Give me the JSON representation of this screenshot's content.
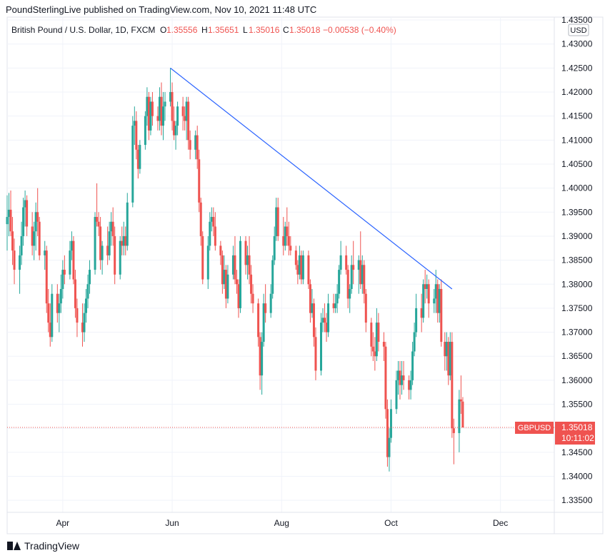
{
  "header": {
    "published_line": "PoundSterlingLive published on TradingView.com, Nov 10, 2021 11:48 UTC"
  },
  "symbol_bar": {
    "title": "British Pound / U.S. Dollar, 1D, FXCM",
    "o_label": "O",
    "o_value": "1.35556",
    "h_label": "H",
    "h_value": "1.35651",
    "l_label": "L",
    "l_value": "1.35016",
    "c_label": "C",
    "c_value": "1.35018",
    "change": "−0.00538 (−0.40%)"
  },
  "currency_badge": "USD",
  "price_tag": {
    "symbol": "GBPUSD",
    "price": "1.35018",
    "countdown": "10:11:02"
  },
  "footer": {
    "brand": "TradingView"
  },
  "colors": {
    "up": "#26a69a",
    "down": "#ef5350",
    "trendline": "#2962ff",
    "grid": "#f0f3fa",
    "text": "#131722"
  },
  "chart_data": {
    "type": "candlestick",
    "title": "",
    "xlabel": "",
    "ylabel": "",
    "ylim": [
      1.3325,
      1.4356
    ],
    "yticks": [
      "1.43500",
      "1.43000",
      "1.42500",
      "1.42000",
      "1.41500",
      "1.41000",
      "1.40500",
      "1.40000",
      "1.39500",
      "1.39000",
      "1.38500",
      "1.38000",
      "1.37500",
      "1.37000",
      "1.36500",
      "1.36000",
      "1.35500",
      "1.35000",
      "1.34500",
      "1.34000",
      "1.33500"
    ],
    "xticks": [
      "Apr",
      "Jun",
      "Aug",
      "Oct",
      "Dec"
    ],
    "xtick_dates": [
      "2021-04-01",
      "2021-06-01",
      "2021-08-01",
      "2021-10-01",
      "2021-12-01"
    ],
    "xrange": [
      "2021-03-01",
      "2021-12-31"
    ],
    "last_price": 1.35018,
    "trendline": {
      "from": [
        "2021-05-31",
        1.425
      ],
      "to": [
        "2021-11-04",
        1.379
      ]
    },
    "candles": [
      [
        "2021-03-01",
        1.3925,
        1.3985,
        1.387,
        1.394
      ],
      [
        "2021-03-02",
        1.394,
        1.399,
        1.39,
        1.3955
      ],
      [
        "2021-03-03",
        1.3955,
        1.3995,
        1.39,
        1.391
      ],
      [
        "2021-03-04",
        1.391,
        1.394,
        1.384,
        1.387
      ],
      [
        "2021-03-05",
        1.387,
        1.3895,
        1.38,
        1.383
      ],
      [
        "2021-03-08",
        1.383,
        1.388,
        1.378,
        1.386
      ],
      [
        "2021-03-09",
        1.386,
        1.393,
        1.384,
        1.39
      ],
      [
        "2021-03-10",
        1.39,
        1.398,
        1.388,
        1.396
      ],
      [
        "2021-03-11",
        1.396,
        1.3995,
        1.392,
        1.3975
      ],
      [
        "2021-03-12",
        1.3975,
        1.3985,
        1.39,
        1.392
      ],
      [
        "2021-03-15",
        1.392,
        1.395,
        1.386,
        1.388
      ],
      [
        "2021-03-16",
        1.388,
        1.393,
        1.385,
        1.391
      ],
      [
        "2021-03-17",
        1.391,
        1.397,
        1.387,
        1.395
      ],
      [
        "2021-03-18",
        1.395,
        1.4,
        1.39,
        1.393
      ],
      [
        "2021-03-19",
        1.393,
        1.394,
        1.385,
        1.386
      ],
      [
        "2021-03-22",
        1.386,
        1.389,
        1.383,
        1.387
      ],
      [
        "2021-03-23",
        1.387,
        1.388,
        1.374,
        1.376
      ],
      [
        "2021-03-24",
        1.376,
        1.379,
        1.37,
        1.372
      ],
      [
        "2021-03-25",
        1.372,
        1.376,
        1.367,
        1.369
      ],
      [
        "2021-03-26",
        1.369,
        1.38,
        1.368,
        1.378
      ],
      [
        "2021-03-29",
        1.378,
        1.38,
        1.372,
        1.374
      ],
      [
        "2021-03-30",
        1.374,
        1.378,
        1.37,
        1.376
      ],
      [
        "2021-03-31",
        1.376,
        1.382,
        1.374,
        1.379
      ],
      [
        "2021-04-01",
        1.379,
        1.385,
        1.377,
        1.383
      ],
      [
        "2021-04-02",
        1.383,
        1.386,
        1.38,
        1.382
      ],
      [
        "2021-04-05",
        1.382,
        1.389,
        1.381,
        1.387
      ],
      [
        "2021-04-06",
        1.387,
        1.391,
        1.385,
        1.389
      ],
      [
        "2021-04-07",
        1.389,
        1.39,
        1.38,
        1.381
      ],
      [
        "2021-04-08",
        1.381,
        1.383,
        1.373,
        1.375
      ],
      [
        "2021-04-09",
        1.375,
        1.377,
        1.369,
        1.372
      ],
      [
        "2021-04-12",
        1.372,
        1.376,
        1.367,
        1.37
      ],
      [
        "2021-04-13",
        1.37,
        1.376,
        1.368,
        1.374
      ],
      [
        "2021-04-14",
        1.374,
        1.379,
        1.372,
        1.377
      ],
      [
        "2021-04-15",
        1.377,
        1.382,
        1.375,
        1.38
      ],
      [
        "2021-04-16",
        1.38,
        1.385,
        1.378,
        1.383
      ],
      [
        "2021-04-19",
        1.383,
        1.395,
        1.382,
        1.394
      ],
      [
        "2021-04-20",
        1.394,
        1.401,
        1.392,
        1.393
      ],
      [
        "2021-04-21",
        1.393,
        1.395,
        1.39,
        1.392
      ],
      [
        "2021-04-22",
        1.392,
        1.394,
        1.383,
        1.385
      ],
      [
        "2021-04-23",
        1.385,
        1.389,
        1.382,
        1.388
      ],
      [
        "2021-04-26",
        1.388,
        1.392,
        1.384,
        1.386
      ],
      [
        "2021-04-27",
        1.386,
        1.393,
        1.385,
        1.391
      ],
      [
        "2021-04-28",
        1.391,
        1.395,
        1.388,
        1.393
      ],
      [
        "2021-04-29",
        1.393,
        1.396,
        1.388,
        1.39
      ],
      [
        "2021-04-30",
        1.39,
        1.392,
        1.38,
        1.382
      ],
      [
        "2021-05-03",
        1.382,
        1.39,
        1.381,
        1.389
      ],
      [
        "2021-05-04",
        1.389,
        1.392,
        1.386,
        1.388
      ],
      [
        "2021-05-05",
        1.388,
        1.393,
        1.386,
        1.39
      ],
      [
        "2021-05-06",
        1.39,
        1.392,
        1.386,
        1.388
      ],
      [
        "2021-05-07",
        1.388,
        1.399,
        1.387,
        1.397
      ],
      [
        "2021-05-10",
        1.397,
        1.415,
        1.396,
        1.413
      ],
      [
        "2021-05-11",
        1.413,
        1.417,
        1.409,
        1.414
      ],
      [
        "2021-05-12",
        1.414,
        1.416,
        1.406,
        1.408
      ],
      [
        "2021-05-13",
        1.408,
        1.409,
        1.402,
        1.404
      ],
      [
        "2021-05-14",
        1.404,
        1.41,
        1.403,
        1.409
      ],
      [
        "2021-05-17",
        1.409,
        1.416,
        1.408,
        1.415
      ],
      [
        "2021-05-18",
        1.415,
        1.421,
        1.413,
        1.419
      ],
      [
        "2021-05-19",
        1.419,
        1.42,
        1.41,
        1.412
      ],
      [
        "2021-05-20",
        1.412,
        1.419,
        1.411,
        1.418
      ],
      [
        "2021-05-21",
        1.418,
        1.42,
        1.413,
        1.415
      ],
      [
        "2021-05-24",
        1.415,
        1.417,
        1.412,
        1.414
      ],
      [
        "2021-05-25",
        1.414,
        1.421,
        1.412,
        1.419
      ],
      [
        "2021-05-26",
        1.419,
        1.422,
        1.411,
        1.413
      ],
      [
        "2021-05-27",
        1.413,
        1.42,
        1.41,
        1.417
      ],
      [
        "2021-05-28",
        1.417,
        1.42,
        1.414,
        1.418
      ],
      [
        "2021-05-31",
        1.418,
        1.425,
        1.417,
        1.42
      ],
      [
        "2021-06-01",
        1.42,
        1.422,
        1.412,
        1.414
      ],
      [
        "2021-06-02",
        1.414,
        1.417,
        1.41,
        1.411
      ],
      [
        "2021-06-03",
        1.411,
        1.414,
        1.408,
        1.413
      ],
      [
        "2021-06-04",
        1.413,
        1.418,
        1.411,
        1.417
      ],
      [
        "2021-06-07",
        1.417,
        1.419,
        1.412,
        1.415
      ],
      [
        "2021-06-08",
        1.415,
        1.417,
        1.412,
        1.414
      ],
      [
        "2021-06-09",
        1.414,
        1.419,
        1.41,
        1.418
      ],
      [
        "2021-06-10",
        1.418,
        1.419,
        1.408,
        1.41
      ],
      [
        "2021-06-11",
        1.41,
        1.412,
        1.406,
        1.408
      ],
      [
        "2021-06-14",
        1.408,
        1.412,
        1.406,
        1.411
      ],
      [
        "2021-06-15",
        1.411,
        1.413,
        1.404,
        1.406
      ],
      [
        "2021-06-16",
        1.406,
        1.408,
        1.395,
        1.397
      ],
      [
        "2021-06-17",
        1.397,
        1.398,
        1.388,
        1.39
      ],
      [
        "2021-06-18",
        1.39,
        1.391,
        1.38,
        1.381
      ],
      [
        "2021-06-21",
        1.381,
        1.39,
        1.379,
        1.388
      ],
      [
        "2021-06-22",
        1.388,
        1.395,
        1.387,
        1.393
      ],
      [
        "2021-06-23",
        1.393,
        1.396,
        1.391,
        1.394
      ],
      [
        "2021-06-24",
        1.394,
        1.396,
        1.39,
        1.392
      ],
      [
        "2021-06-25",
        1.392,
        1.395,
        1.387,
        1.388
      ],
      [
        "2021-06-28",
        1.388,
        1.389,
        1.384,
        1.386
      ],
      [
        "2021-06-29",
        1.386,
        1.387,
        1.378,
        1.38
      ],
      [
        "2021-06-30",
        1.38,
        1.386,
        1.379,
        1.383
      ],
      [
        "2021-07-01",
        1.383,
        1.384,
        1.375,
        1.377
      ],
      [
        "2021-07-02",
        1.377,
        1.384,
        1.376,
        1.382
      ],
      [
        "2021-07-05",
        1.382,
        1.388,
        1.381,
        1.386
      ],
      [
        "2021-07-06",
        1.386,
        1.39,
        1.38,
        1.381
      ],
      [
        "2021-07-07",
        1.381,
        1.383,
        1.378,
        1.38
      ],
      [
        "2021-07-08",
        1.38,
        1.381,
        1.373,
        1.375
      ],
      [
        "2021-07-09",
        1.375,
        1.39,
        1.374,
        1.389
      ],
      [
        "2021-07-12",
        1.389,
        1.39,
        1.382,
        1.384
      ],
      [
        "2021-07-13",
        1.384,
        1.388,
        1.381,
        1.386
      ],
      [
        "2021-07-14",
        1.386,
        1.39,
        1.38,
        1.382
      ],
      [
        "2021-07-15",
        1.382,
        1.384,
        1.376,
        1.378
      ],
      [
        "2021-07-16",
        1.378,
        1.38,
        1.374,
        1.376
      ],
      [
        "2021-07-19",
        1.376,
        1.377,
        1.367,
        1.369
      ],
      [
        "2021-07-20",
        1.369,
        1.37,
        1.358,
        1.361
      ],
      [
        "2021-07-21",
        1.361,
        1.37,
        1.357,
        1.368
      ],
      [
        "2021-07-22",
        1.368,
        1.378,
        1.367,
        1.376
      ],
      [
        "2021-07-23",
        1.376,
        1.38,
        1.372,
        1.374
      ],
      [
        "2021-07-26",
        1.374,
        1.38,
        1.373,
        1.378
      ],
      [
        "2021-07-27",
        1.378,
        1.386,
        1.377,
        1.385
      ],
      [
        "2021-07-28",
        1.385,
        1.392,
        1.384,
        1.39
      ],
      [
        "2021-07-29",
        1.39,
        1.398,
        1.389,
        1.396
      ],
      [
        "2021-07-30",
        1.396,
        1.398,
        1.389,
        1.39
      ],
      [
        "2021-08-02",
        1.39,
        1.394,
        1.386,
        1.388
      ],
      [
        "2021-08-03",
        1.388,
        1.393,
        1.387,
        1.392
      ],
      [
        "2021-08-04",
        1.392,
        1.396,
        1.388,
        1.39
      ],
      [
        "2021-08-05",
        1.39,
        1.393,
        1.386,
        1.388
      ],
      [
        "2021-08-06",
        1.388,
        1.39,
        1.386,
        1.387
      ],
      [
        "2021-08-09",
        1.387,
        1.388,
        1.383,
        1.384
      ],
      [
        "2021-08-10",
        1.384,
        1.385,
        1.38,
        1.382
      ],
      [
        "2021-08-11",
        1.382,
        1.388,
        1.381,
        1.386
      ],
      [
        "2021-08-12",
        1.386,
        1.387,
        1.38,
        1.381
      ],
      [
        "2021-08-13",
        1.381,
        1.387,
        1.38,
        1.386
      ],
      [
        "2021-08-16",
        1.386,
        1.387,
        1.379,
        1.38
      ],
      [
        "2021-08-17",
        1.38,
        1.381,
        1.372,
        1.374
      ],
      [
        "2021-08-18",
        1.374,
        1.379,
        1.373,
        1.376
      ],
      [
        "2021-08-19",
        1.376,
        1.377,
        1.367,
        1.369
      ],
      [
        "2021-08-20",
        1.369,
        1.371,
        1.36,
        1.362
      ],
      [
        "2021-08-23",
        1.362,
        1.374,
        1.361,
        1.372
      ],
      [
        "2021-08-24",
        1.372,
        1.375,
        1.37,
        1.373
      ],
      [
        "2021-08-25",
        1.373,
        1.376,
        1.37,
        1.372
      ],
      [
        "2021-08-26",
        1.372,
        1.374,
        1.368,
        1.37
      ],
      [
        "2021-08-27",
        1.37,
        1.378,
        1.369,
        1.376
      ],
      [
        "2021-08-30",
        1.376,
        1.378,
        1.374,
        1.375
      ],
      [
        "2021-08-31",
        1.375,
        1.378,
        1.374,
        1.376
      ],
      [
        "2021-09-01",
        1.376,
        1.38,
        1.374,
        1.378
      ],
      [
        "2021-09-02",
        1.378,
        1.384,
        1.377,
        1.383
      ],
      [
        "2021-09-03",
        1.383,
        1.389,
        1.382,
        1.386
      ],
      [
        "2021-09-06",
        1.386,
        1.388,
        1.382,
        1.383
      ],
      [
        "2021-09-07",
        1.383,
        1.384,
        1.375,
        1.377
      ],
      [
        "2021-09-08",
        1.377,
        1.38,
        1.374,
        1.379
      ],
      [
        "2021-09-09",
        1.379,
        1.386,
        1.378,
        1.384
      ],
      [
        "2021-09-10",
        1.384,
        1.389,
        1.38,
        1.383
      ],
      [
        "2021-09-13",
        1.383,
        1.386,
        1.378,
        1.385
      ],
      [
        "2021-09-14",
        1.385,
        1.391,
        1.379,
        1.38
      ],
      [
        "2021-09-15",
        1.38,
        1.386,
        1.378,
        1.384
      ],
      [
        "2021-09-16",
        1.384,
        1.385,
        1.376,
        1.378
      ],
      [
        "2021-09-17",
        1.378,
        1.379,
        1.37,
        1.372
      ],
      [
        "2021-09-20",
        1.372,
        1.373,
        1.365,
        1.367
      ],
      [
        "2021-09-21",
        1.367,
        1.37,
        1.364,
        1.366
      ],
      [
        "2021-09-22",
        1.366,
        1.369,
        1.362,
        1.365
      ],
      [
        "2021-09-23",
        1.365,
        1.375,
        1.364,
        1.372
      ],
      [
        "2021-09-24",
        1.372,
        1.374,
        1.366,
        1.368
      ],
      [
        "2021-09-27",
        1.368,
        1.37,
        1.364,
        1.367
      ],
      [
        "2021-09-28",
        1.367,
        1.368,
        1.352,
        1.354
      ],
      [
        "2021-09-29",
        1.354,
        1.356,
        1.342,
        1.344
      ],
      [
        "2021-09-30",
        1.344,
        1.35,
        1.341,
        1.348
      ],
      [
        "2021-10-01",
        1.348,
        1.356,
        1.347,
        1.354
      ],
      [
        "2021-10-04",
        1.354,
        1.362,
        1.353,
        1.36
      ],
      [
        "2021-10-05",
        1.36,
        1.364,
        1.357,
        1.362
      ],
      [
        "2021-10-06",
        1.362,
        1.364,
        1.356,
        1.359
      ],
      [
        "2021-10-07",
        1.359,
        1.364,
        1.357,
        1.361
      ],
      [
        "2021-10-08",
        1.361,
        1.364,
        1.358,
        1.36
      ],
      [
        "2021-10-11",
        1.36,
        1.361,
        1.356,
        1.358
      ],
      [
        "2021-10-12",
        1.358,
        1.362,
        1.356,
        1.36
      ],
      [
        "2021-10-13",
        1.36,
        1.368,
        1.359,
        1.366
      ],
      [
        "2021-10-14",
        1.366,
        1.372,
        1.365,
        1.37
      ],
      [
        "2021-10-15",
        1.37,
        1.378,
        1.369,
        1.375
      ],
      [
        "2021-10-18",
        1.375,
        1.378,
        1.37,
        1.373
      ],
      [
        "2021-10-19",
        1.373,
        1.381,
        1.372,
        1.38
      ],
      [
        "2021-10-20",
        1.38,
        1.383,
        1.376,
        1.379
      ],
      [
        "2021-10-21",
        1.379,
        1.382,
        1.377,
        1.38
      ],
      [
        "2021-10-22",
        1.38,
        1.381,
        1.373,
        1.376
      ],
      [
        "2021-10-25",
        1.376,
        1.379,
        1.374,
        1.377
      ],
      [
        "2021-10-26",
        1.377,
        1.383,
        1.374,
        1.38
      ],
      [
        "2021-10-27",
        1.38,
        1.381,
        1.372,
        1.374
      ],
      [
        "2021-10-28",
        1.374,
        1.38,
        1.372,
        1.379
      ],
      [
        "2021-10-29",
        1.379,
        1.381,
        1.367,
        1.368
      ],
      [
        "2021-10-31",
        1.368,
        1.37,
        1.362,
        1.365
      ],
      [
        "2021-11-01",
        1.365,
        1.37,
        1.362,
        1.368
      ],
      [
        "2021-11-02",
        1.368,
        1.369,
        1.359,
        1.361
      ],
      [
        "2021-11-03",
        1.361,
        1.37,
        1.36,
        1.368
      ],
      [
        "2021-11-04",
        1.368,
        1.37,
        1.348,
        1.35
      ],
      [
        "2021-11-05",
        1.35,
        1.352,
        1.3425,
        1.349
      ],
      [
        "2021-11-08",
        1.349,
        1.358,
        1.345,
        1.356
      ],
      [
        "2021-11-09",
        1.356,
        1.361,
        1.353,
        1.3556
      ],
      [
        "2021-11-10",
        1.35556,
        1.35651,
        1.35016,
        1.35018
      ]
    ]
  }
}
